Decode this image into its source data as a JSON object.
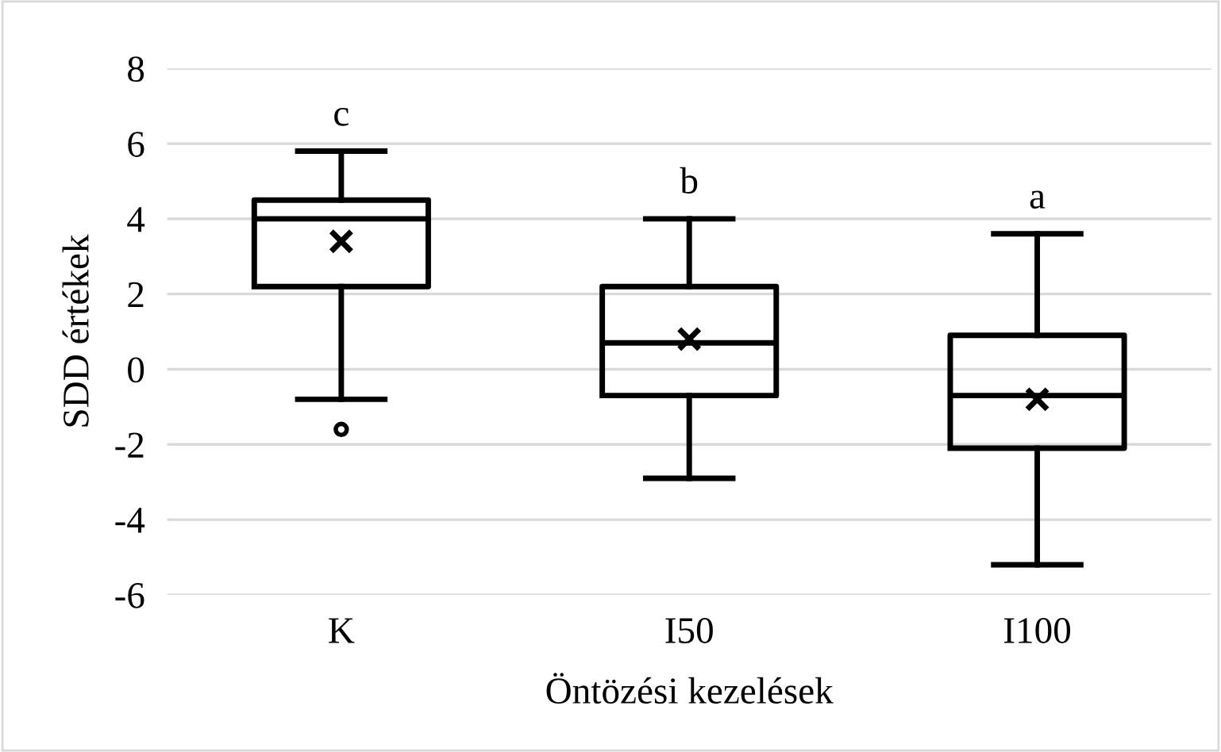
{
  "chart_data": {
    "type": "box",
    "xlabel": "Öntözési kezelések",
    "ylabel": "SDD értékek",
    "categories": [
      "K",
      "I50",
      "I100"
    ],
    "boxes": [
      {
        "low": -0.8,
        "q1": 2.2,
        "median": 4.0,
        "q3": 4.5,
        "high": 5.8,
        "mean": 3.4,
        "outliers": [
          -1.6
        ]
      },
      {
        "low": -2.9,
        "q1": -0.7,
        "median": 0.7,
        "q3": 2.2,
        "high": 4.0,
        "mean": 0.8
      },
      {
        "low": -5.2,
        "q1": -2.1,
        "median": -0.7,
        "q3": 0.9,
        "high": 3.6,
        "mean": -0.8
      }
    ],
    "color": "#000000",
    "ylim": [
      -6,
      8
    ],
    "yticks": [
      -6,
      -4,
      -2,
      0,
      2,
      4,
      6,
      8
    ],
    "grid": "y",
    "annotations": [
      "c",
      "b",
      "a"
    ]
  }
}
